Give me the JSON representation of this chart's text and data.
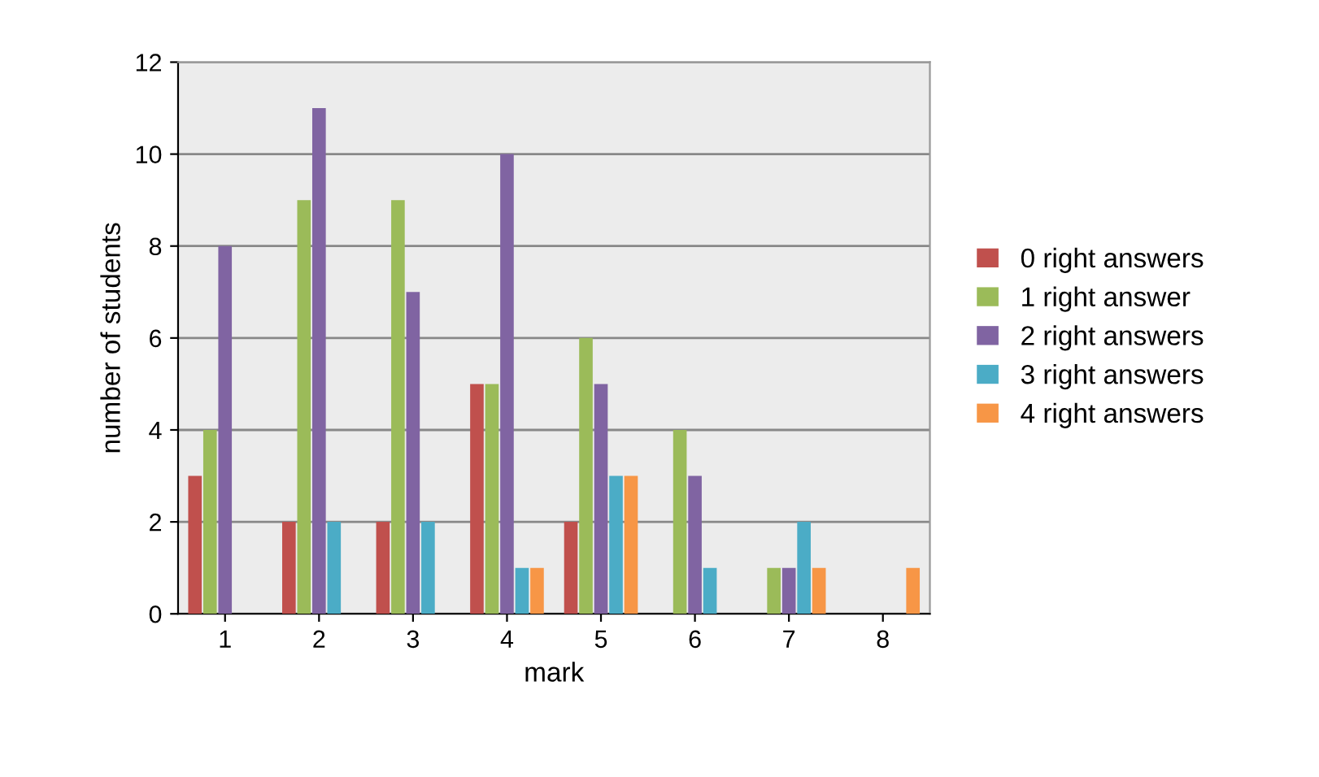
{
  "chart_data": {
    "type": "bar",
    "xlabel": "mark",
    "ylabel": "number of students",
    "categories": [
      "1",
      "2",
      "3",
      "4",
      "5",
      "6",
      "7",
      "8"
    ],
    "series": [
      {
        "name": "0 right answers",
        "color": "#c0504d",
        "values": [
          3,
          2,
          2,
          5,
          2,
          0,
          0,
          0
        ]
      },
      {
        "name": "1 right answer",
        "color": "#9bbb59",
        "values": [
          4,
          9,
          9,
          5,
          6,
          4,
          1,
          0
        ]
      },
      {
        "name": "2 right answers",
        "color": "#8064a2",
        "values": [
          8,
          11,
          7,
          10,
          5,
          3,
          1,
          0
        ]
      },
      {
        "name": "3 right answers",
        "color": "#4bacc6",
        "values": [
          0,
          2,
          2,
          1,
          3,
          1,
          2,
          0
        ]
      },
      {
        "name": "4 right answers",
        "color": "#f79646",
        "values": [
          0,
          0,
          0,
          1,
          3,
          0,
          1,
          1
        ]
      }
    ],
    "ylim": [
      0,
      12
    ],
    "yticks": [
      0,
      2,
      4,
      6,
      8,
      10,
      12
    ],
    "grid": "y",
    "legend": "right"
  }
}
